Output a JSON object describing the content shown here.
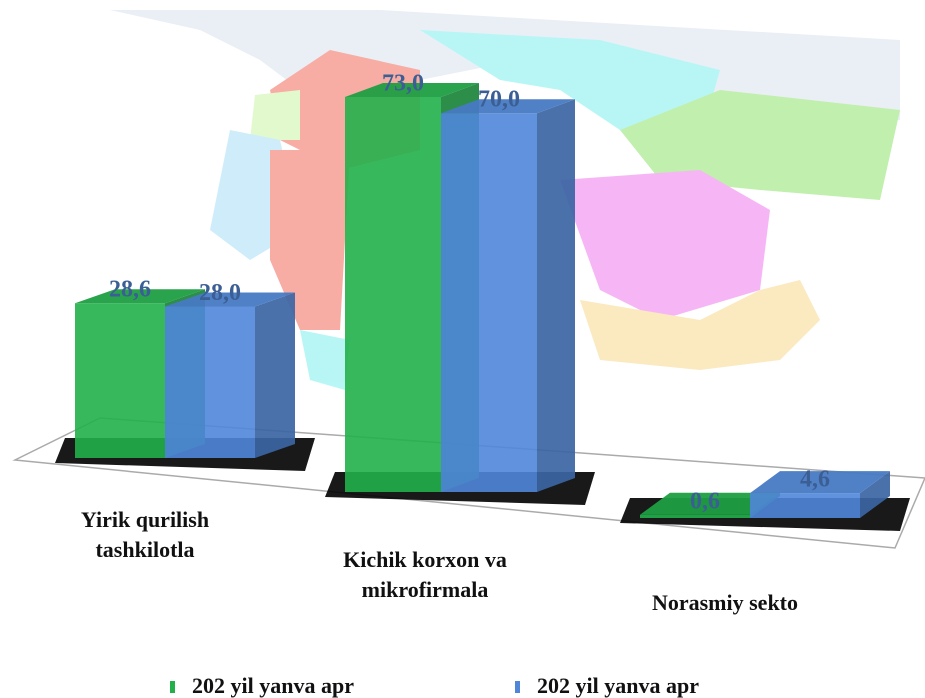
{
  "chart_data": {
    "type": "bar3d",
    "categories": [
      "Yirik qurilish tashkilotla",
      "Kichik korxon va mikrofirmala",
      "Norasmiy sekto"
    ],
    "series": [
      {
        "name": "202 yil yanva apr",
        "color": "#22b04a",
        "values": [
          28.6,
          73.0,
          0.6
        ],
        "value_labels": [
          "28,6",
          "73,0",
          "0,6"
        ]
      },
      {
        "name": "202 yil yanva apr",
        "color": "#4f86d9",
        "values": [
          28.0,
          70.0,
          4.6
        ],
        "value_labels": [
          "28,0",
          "70,0",
          "4,6"
        ]
      }
    ]
  }
}
